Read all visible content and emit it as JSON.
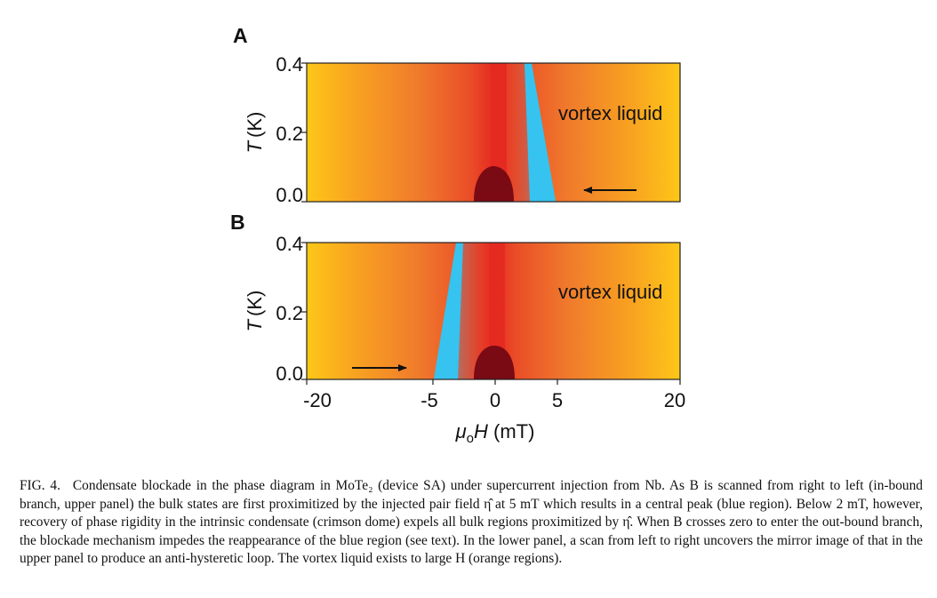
{
  "figure": {
    "panels": [
      {
        "letter": "A",
        "region_label": "vortex liquid",
        "arrow": "left",
        "blue_band_side": "right",
        "y_ticks": [
          "0.4",
          "0.2",
          "0.0"
        ],
        "y_label_italic": "T",
        "y_label_unit": "(K)"
      },
      {
        "letter": "B",
        "region_label": "vortex liquid",
        "arrow": "right",
        "blue_band_side": "left",
        "y_ticks": [
          "0.4",
          "0.2",
          "0.0"
        ],
        "y_label_italic": "T",
        "y_label_unit": "(K)"
      }
    ],
    "x_ticks": [
      "-20",
      "-5",
      "0",
      "5",
      "20"
    ],
    "x_label": {
      "mu": "μ",
      "sub": "o",
      "var": "H",
      "unit": " (mT)"
    },
    "colors": {
      "orange_edge": "#fdc718",
      "orange_mid": "#f07a2c",
      "red_center": "#e52a22",
      "blue_region": "#36c3f0",
      "crimson_dome": "#7a0a14"
    }
  },
  "caption": {
    "label": "FIG. 4.",
    "text": "Condensate blockade in the phase diagram in MoTe₂ (device SA) under supercurrent injection from Nb. As B is scanned from right to left (in-bound branch, upper panel) the bulk states are first proximitized by the injected pair field η̂ at 5 mT which results in a central peak (blue region). Below 2 mT, however, recovery of phase rigidity in the intrinsic condensate (crimson dome) expels all bulk regions proximitized by η̂. When B crosses zero to enter the out-bound branch, the blockade mechanism impedes the reappearance of the blue region (see text). In the lower panel, a scan from left to right uncovers the mirror image of that in the upper panel to produce an anti-hysteretic loop. The vortex liquid exists to large H (orange regions)."
  }
}
